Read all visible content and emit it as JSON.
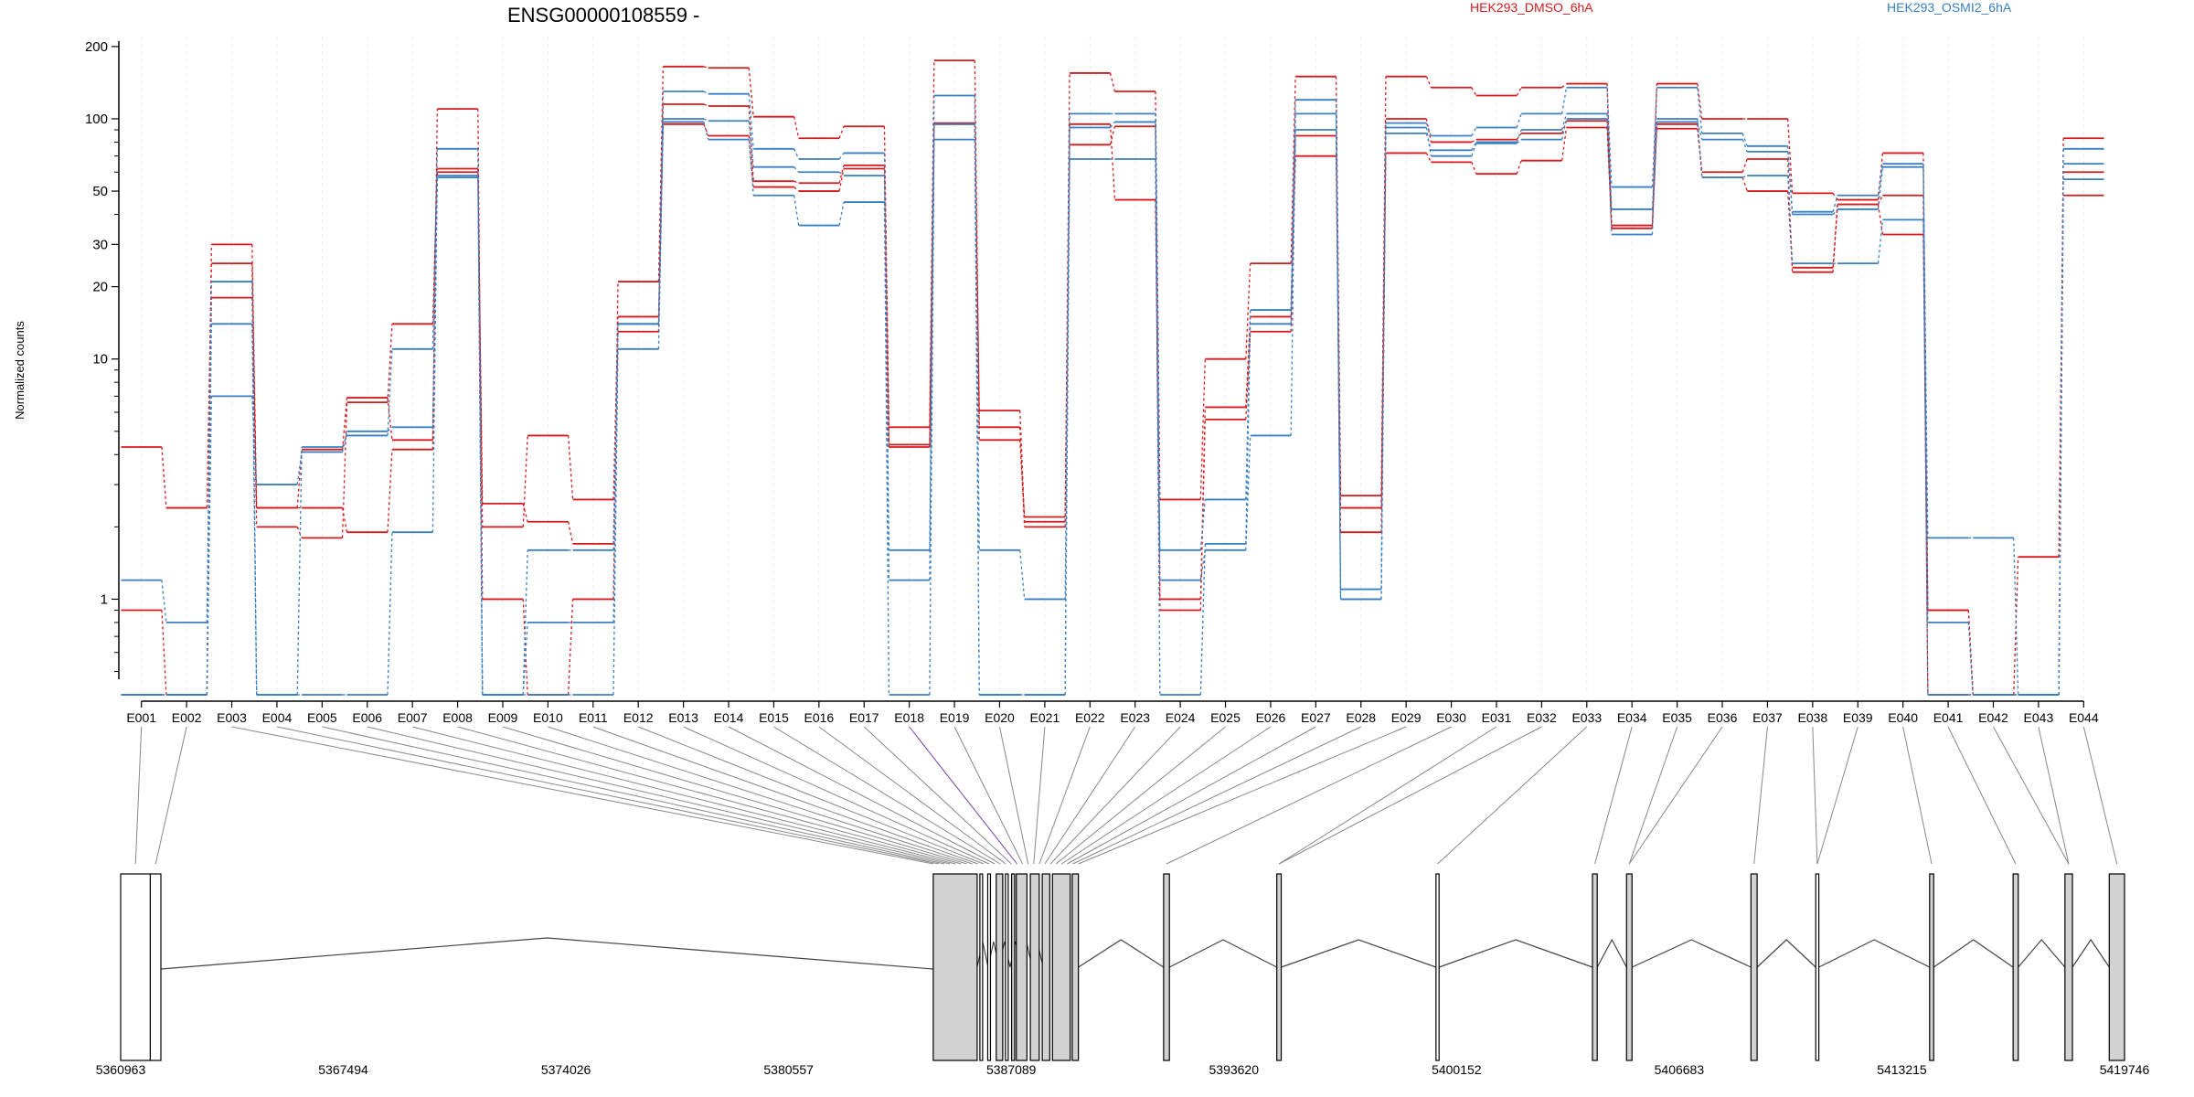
{
  "title": "ENSG00000108559 -",
  "legend": [
    {
      "name": "HEK293_DMSO_6hA",
      "color": "#d7191c"
    },
    {
      "name": "HEK293_OSMI2_6hA",
      "color": "#3a7fc1"
    }
  ],
  "chart_data": [
    {
      "type": "line",
      "title": "ENSG00000108559 -",
      "ylabel": "Normalized counts",
      "yscale": "log",
      "ylim": [
        0.4,
        220
      ],
      "yticks": [
        1,
        10,
        20,
        30,
        50,
        100,
        200
      ],
      "categories": [
        "E001",
        "E002",
        "E003",
        "E004",
        "E005",
        "E006",
        "E007",
        "E008",
        "E009",
        "E010",
        "E011",
        "E012",
        "E013",
        "E014",
        "E015",
        "E016",
        "E017",
        "E018",
        "E019",
        "E020",
        "E021",
        "E022",
        "E023",
        "E024",
        "E025",
        "E026",
        "E027",
        "E028",
        "E029",
        "E030",
        "E031",
        "E032",
        "E033",
        "E034",
        "E035",
        "E036",
        "E037",
        "E038",
        "E039",
        "E040",
        "E041",
        "E042",
        "E043",
        "E044"
      ],
      "series": [
        {
          "name": "HEK293_DMSO_6hA",
          "color": "#d7191c",
          "values": [
            0.9,
            0.4,
            18,
            2.4,
            2.4,
            1.9,
            4.2,
            60,
            2.5,
            2.1,
            1.7,
            13,
            95,
            85,
            52,
            50,
            62,
            4.4,
            95,
            4.6,
            2.2,
            78,
            93,
            0.9,
            5.6,
            13,
            70,
            1.9,
            72,
            66,
            59,
            67,
            92,
            35,
            95,
            57,
            50,
            24,
            44,
            33,
            0.9,
            0.4,
            0.4,
            48
          ]
        },
        {
          "name": "HEK293_DMSO_6hA",
          "color": "#d7191c",
          "values": [
            4.3,
            2.4,
            25,
            2.0,
            1.8,
            6.6,
            14,
            62,
            2.0,
            4.8,
            2.6,
            15,
            115,
            113,
            55,
            54,
            64,
            4.3,
            96,
            6.1,
            2.1,
            95,
            46,
            1.0,
            6.3,
            15,
            85,
            2.4,
            100,
            80,
            82,
            87,
            98,
            36,
            91,
            60,
            68,
            23,
            44,
            48,
            0.4,
            0.4,
            1.5,
            60
          ]
        },
        {
          "name": "HEK293_DMSO_6hA",
          "color": "#d7191c",
          "values": [
            0.4,
            0.4,
            30,
            2.4,
            4.2,
            6.9,
            4.6,
            110,
            1.0,
            0.4,
            1.0,
            21,
            165,
            163,
            102,
            83,
            93,
            5.2,
            175,
            5.2,
            2.0,
            155,
            130,
            2.6,
            10,
            25,
            150,
            2.7,
            150,
            135,
            125,
            135,
            140,
            35,
            140,
            100,
            100,
            49,
            46,
            72,
            0.9,
            0.4,
            0.4,
            83
          ]
        },
        {
          "name": "HEK293_OSMI2_6hA",
          "color": "#3a7fc1",
          "values": [
            1.2,
            0.8,
            21,
            0.4,
            4.3,
            4.8,
            11,
            75,
            0.4,
            0.8,
            0.8,
            14,
            130,
            127,
            75,
            68,
            72,
            1.2,
            125,
            0.4,
            0.4,
            105,
            105,
            1.6,
            2.6,
            16,
            120,
            1.0,
            96,
            85,
            92,
            105,
            135,
            52,
            135,
            87,
            77,
            41,
            48,
            65,
            1.8,
            1.8,
            0.4,
            65
          ]
        },
        {
          "name": "HEK293_OSMI2_6hA",
          "color": "#3a7fc1",
          "values": [
            0.4,
            0.4,
            7,
            3.0,
            4.1,
            5.0,
            5.2,
            57,
            0.4,
            1.6,
            1.6,
            14,
            100,
            98,
            63,
            60,
            58,
            1.6,
            95,
            1.6,
            1.0,
            92,
            97,
            1.2,
            1.6,
            4.8,
            105,
            1.1,
            87,
            74,
            80,
            90,
            105,
            42,
            97,
            82,
            73,
            40,
            42,
            63,
            0.8,
            0.4,
            0.4,
            75
          ]
        },
        {
          "name": "HEK293_OSMI2_6hA",
          "color": "#3a7fc1",
          "values": [
            0.4,
            0.4,
            14,
            0.4,
            0.4,
            0.4,
            1.9,
            58,
            0.4,
            0.4,
            0.4,
            11,
            97,
            82,
            48,
            36,
            45,
            0.4,
            82,
            0.4,
            0.4,
            68,
            68,
            0.4,
            1.7,
            14,
            90,
            1.0,
            92,
            70,
            79,
            82,
            100,
            33,
            100,
            57,
            58,
            25,
            25,
            38,
            0.4,
            0.4,
            0.4,
            56
          ]
        }
      ]
    },
    {
      "type": "gene-model",
      "x_axis": "genomic coordinate",
      "xlim": [
        5360963,
        5419746
      ],
      "xticks": [
        5360963,
        5367494,
        5374026,
        5380557,
        5387089,
        5393620,
        5400152,
        5406683,
        5413215,
        5419746
      ],
      "exons": [
        {
          "start": 5360963,
          "end": 5361833,
          "filled": false
        },
        {
          "start": 5361833,
          "end": 5362143,
          "filled": false
        },
        {
          "start": 5384800,
          "end": 5386088,
          "filled": true
        },
        {
          "start": 5386168,
          "end": 5386218,
          "filled": false
        },
        {
          "start": 5386398,
          "end": 5386438,
          "filled": false
        },
        {
          "start": 5386648,
          "end": 5386838,
          "filled": true
        },
        {
          "start": 5386918,
          "end": 5386958,
          "filled": false
        },
        {
          "start": 5387098,
          "end": 5387188,
          "filled": true
        },
        {
          "start": 5387238,
          "end": 5387548,
          "filled": true
        },
        {
          "start": 5387648,
          "end": 5387908,
          "filled": true
        },
        {
          "start": 5387998,
          "end": 5388218,
          "filled": true
        },
        {
          "start": 5388298,
          "end": 5388818,
          "filled": true
        },
        {
          "start": 5388878,
          "end": 5389058,
          "filled": true
        },
        {
          "start": 5391558,
          "end": 5391728,
          "filled": true
        },
        {
          "start": 5394878,
          "end": 5395008,
          "filled": true
        },
        {
          "start": 5399548,
          "end": 5399638,
          "filled": false
        },
        {
          "start": 5404138,
          "end": 5404278,
          "filled": true
        },
        {
          "start": 5405138,
          "end": 5405298,
          "filled": true
        },
        {
          "start": 5408788,
          "end": 5408968,
          "filled": true
        },
        {
          "start": 5410688,
          "end": 5410778,
          "filled": false
        },
        {
          "start": 5414028,
          "end": 5414148,
          "filled": true
        },
        {
          "start": 5416478,
          "end": 5416628,
          "filled": true
        },
        {
          "start": 5417998,
          "end": 5418218,
          "filled": true
        },
        {
          "start": 5419298,
          "end": 5419746,
          "filled": true
        }
      ],
      "intron_peaks_log10": [
        [
          5362143,
          5384800,
          0.12
        ],
        [
          5389058,
          5391558,
          0.5
        ],
        [
          5391728,
          5394878,
          0.5
        ],
        [
          5395008,
          5399548,
          0.5
        ],
        [
          5399638,
          5404138,
          0.5
        ],
        [
          5404278,
          5405138,
          0.5
        ],
        [
          5405298,
          5408788,
          0.5
        ],
        [
          5408968,
          5410688,
          0.5
        ],
        [
          5410778,
          5414028,
          0.5
        ],
        [
          5414148,
          5416478,
          0.5
        ],
        [
          5416628,
          5417998,
          0.5
        ],
        [
          5418218,
          5419298,
          0.5
        ]
      ]
    }
  ]
}
